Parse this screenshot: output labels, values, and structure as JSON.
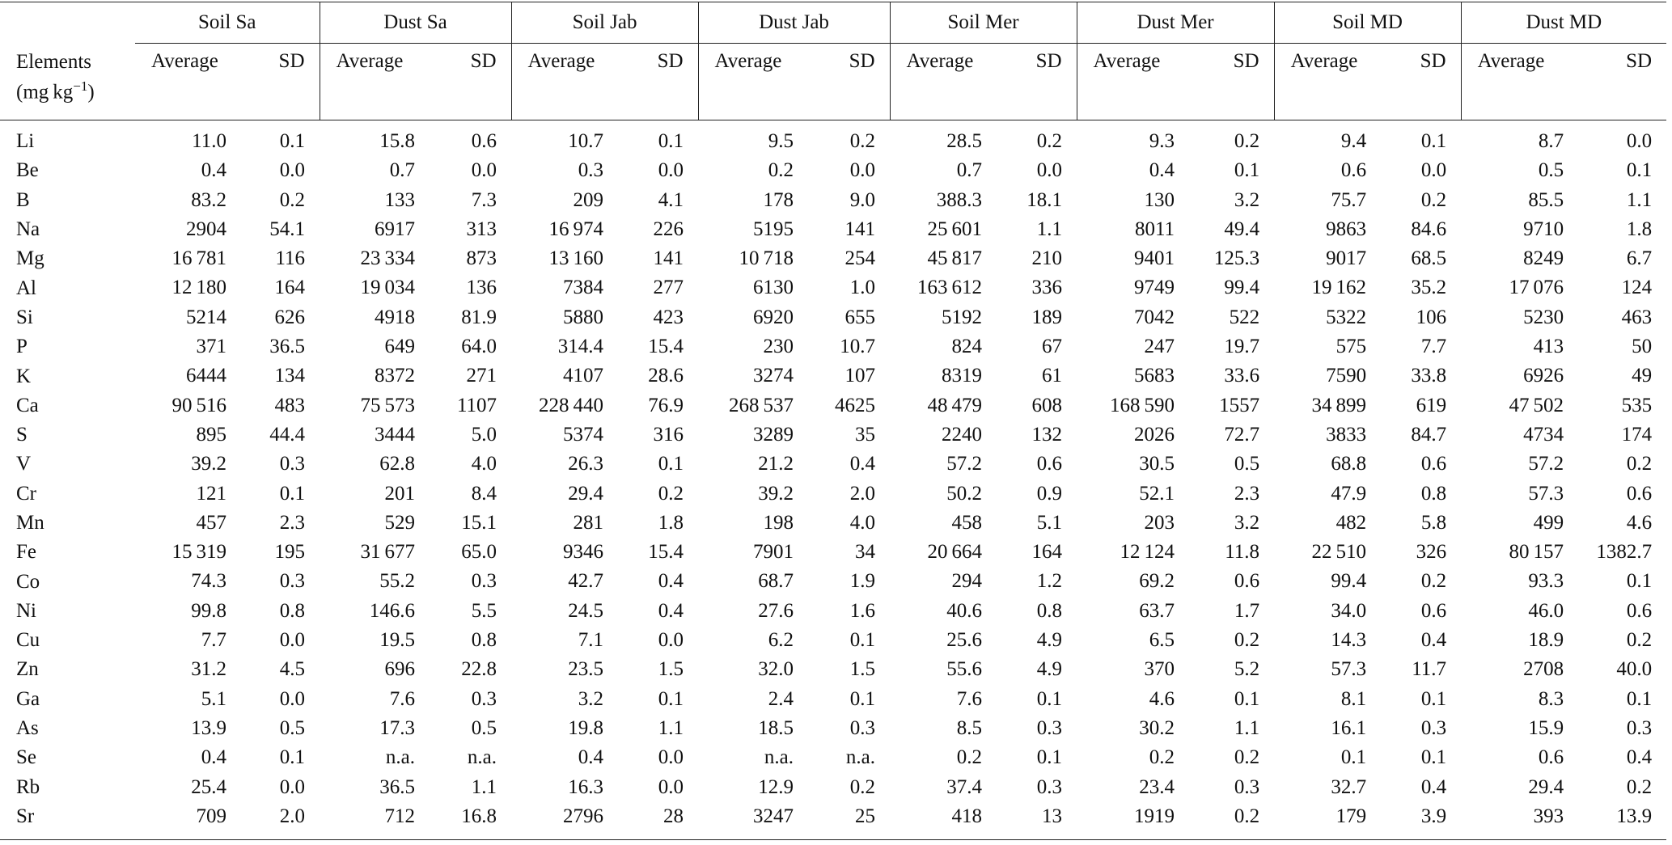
{
  "table": {
    "groups": [
      "Soil Sa",
      "Dust Sa",
      "Soil Jab",
      "Dust Jab",
      "Soil Mer",
      "Dust Mer",
      "Soil MD",
      "Dust MD"
    ],
    "column_labels": [
      "Average",
      "SD"
    ],
    "stub_header": {
      "line1": "Elements",
      "unit_open": "(mg kg",
      "exponent": "−1",
      "unit_close": ")"
    },
    "rows": [
      [
        "Li",
        "11.0",
        "0.1",
        "15.8",
        "0.6",
        "10.7",
        "0.1",
        "9.5",
        "0.2",
        "28.5",
        "0.2",
        "9.3",
        "0.2",
        "9.4",
        "0.1",
        "8.7",
        "0.0"
      ],
      [
        "Be",
        "0.4",
        "0.0",
        "0.7",
        "0.0",
        "0.3",
        "0.0",
        "0.2",
        "0.0",
        "0.7",
        "0.0",
        "0.4",
        "0.1",
        "0.6",
        "0.0",
        "0.5",
        "0.1"
      ],
      [
        "B",
        "83.2",
        "0.2",
        "133",
        "7.3",
        "209",
        "4.1",
        "178",
        "9.0",
        "388.3",
        "18.1",
        "130",
        "3.2",
        "75.7",
        "0.2",
        "85.5",
        "1.1"
      ],
      [
        "Na",
        "2904",
        "54.1",
        "6917",
        "313",
        "16 974",
        "226",
        "5195",
        "141",
        "25 601",
        "1.1",
        "8011",
        "49.4",
        "9863",
        "84.6",
        "9710",
        "1.8"
      ],
      [
        "Mg",
        "16 781",
        "116",
        "23 334",
        "873",
        "13 160",
        "141",
        "10 718",
        "254",
        "45 817",
        "210",
        "9401",
        "125.3",
        "9017",
        "68.5",
        "8249",
        "6.7"
      ],
      [
        "Al",
        "12 180",
        "164",
        "19 034",
        "136",
        "7384",
        "277",
        "6130",
        "1.0",
        "163 612",
        "336",
        "9749",
        "99.4",
        "19 162",
        "35.2",
        "17 076",
        "124"
      ],
      [
        "Si",
        "5214",
        "626",
        "4918",
        "81.9",
        "5880",
        "423",
        "6920",
        "655",
        "5192",
        "189",
        "7042",
        "522",
        "5322",
        "106",
        "5230",
        "463"
      ],
      [
        "P",
        "371",
        "36.5",
        "649",
        "64.0",
        "314.4",
        "15.4",
        "230",
        "10.7",
        "824",
        "67",
        "247",
        "19.7",
        "575",
        "7.7",
        "413",
        "50"
      ],
      [
        "K",
        "6444",
        "134",
        "8372",
        "271",
        "4107",
        "28.6",
        "3274",
        "107",
        "8319",
        "61",
        "5683",
        "33.6",
        "7590",
        "33.8",
        "6926",
        "49"
      ],
      [
        "Ca",
        "90 516",
        "483",
        "75 573",
        "1107",
        "228 440",
        "76.9",
        "268 537",
        "4625",
        "48 479",
        "608",
        "168 590",
        "1557",
        "34 899",
        "619",
        "47 502",
        "535"
      ],
      [
        "S",
        "895",
        "44.4",
        "3444",
        "5.0",
        "5374",
        "316",
        "3289",
        "35",
        "2240",
        "132",
        "2026",
        "72.7",
        "3833",
        "84.7",
        "4734",
        "174"
      ],
      [
        "V",
        "39.2",
        "0.3",
        "62.8",
        "4.0",
        "26.3",
        "0.1",
        "21.2",
        "0.4",
        "57.2",
        "0.6",
        "30.5",
        "0.5",
        "68.8",
        "0.6",
        "57.2",
        "0.2"
      ],
      [
        "Cr",
        "121",
        "0.1",
        "201",
        "8.4",
        "29.4",
        "0.2",
        "39.2",
        "2.0",
        "50.2",
        "0.9",
        "52.1",
        "2.3",
        "47.9",
        "0.8",
        "57.3",
        "0.6"
      ],
      [
        "Mn",
        "457",
        "2.3",
        "529",
        "15.1",
        "281",
        "1.8",
        "198",
        "4.0",
        "458",
        "5.1",
        "203",
        "3.2",
        "482",
        "5.8",
        "499",
        "4.6"
      ],
      [
        "Fe",
        "15 319",
        "195",
        "31 677",
        "65.0",
        "9346",
        "15.4",
        "7901",
        "34",
        "20 664",
        "164",
        "12 124",
        "11.8",
        "22 510",
        "326",
        "80 157",
        "1382.7"
      ],
      [
        "Co",
        "74.3",
        "0.3",
        "55.2",
        "0.3",
        "42.7",
        "0.4",
        "68.7",
        "1.9",
        "294",
        "1.2",
        "69.2",
        "0.6",
        "99.4",
        "0.2",
        "93.3",
        "0.1"
      ],
      [
        "Ni",
        "99.8",
        "0.8",
        "146.6",
        "5.5",
        "24.5",
        "0.4",
        "27.6",
        "1.6",
        "40.6",
        "0.8",
        "63.7",
        "1.7",
        "34.0",
        "0.6",
        "46.0",
        "0.6"
      ],
      [
        "Cu",
        "7.7",
        "0.0",
        "19.5",
        "0.8",
        "7.1",
        "0.0",
        "6.2",
        "0.1",
        "25.6",
        "4.9",
        "6.5",
        "0.2",
        "14.3",
        "0.4",
        "18.9",
        "0.2"
      ],
      [
        "Zn",
        "31.2",
        "4.5",
        "696",
        "22.8",
        "23.5",
        "1.5",
        "32.0",
        "1.5",
        "55.6",
        "4.9",
        "370",
        "5.2",
        "57.3",
        "11.7",
        "2708",
        "40.0"
      ],
      [
        "Ga",
        "5.1",
        "0.0",
        "7.6",
        "0.3",
        "3.2",
        "0.1",
        "2.4",
        "0.1",
        "7.6",
        "0.1",
        "4.6",
        "0.1",
        "8.1",
        "0.1",
        "8.3",
        "0.1"
      ],
      [
        "As",
        "13.9",
        "0.5",
        "17.3",
        "0.5",
        "19.8",
        "1.1",
        "18.5",
        "0.3",
        "8.5",
        "0.3",
        "30.2",
        "1.1",
        "16.1",
        "0.3",
        "15.9",
        "0.3"
      ],
      [
        "Se",
        "0.4",
        "0.1",
        "n.a.",
        "n.a.",
        "0.4",
        "0.0",
        "n.a.",
        "n.a.",
        "0.2",
        "0.1",
        "0.2",
        "0.2",
        "0.1",
        "0.1",
        "0.6",
        "0.4"
      ],
      [
        "Rb",
        "25.4",
        "0.0",
        "36.5",
        "1.1",
        "16.3",
        "0.0",
        "12.9",
        "0.2",
        "37.4",
        "0.3",
        "23.4",
        "0.3",
        "32.7",
        "0.4",
        "29.4",
        "0.2"
      ],
      [
        "Sr",
        "709",
        "2.0",
        "712",
        "16.8",
        "2796",
        "28",
        "3247",
        "25",
        "418",
        "13",
        "1919",
        "0.2",
        "179",
        "3.9",
        "393",
        "13.9"
      ]
    ]
  }
}
